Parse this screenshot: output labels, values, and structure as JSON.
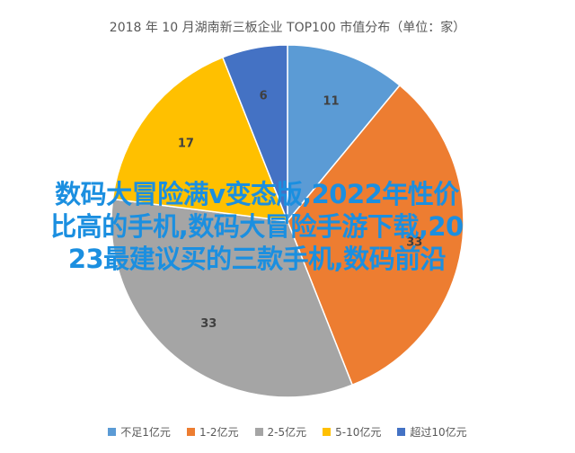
{
  "chart_data": {
    "type": "pie",
    "title": "2018 年 10 月湖南新三板企业 TOP100 市值分布（单位：家）",
    "slices": [
      {
        "label": "不足1亿元",
        "value": 11,
        "color": "#5b9bd5"
      },
      {
        "label": "1-2亿元",
        "value": 33,
        "color": "#ed7d31"
      },
      {
        "label": "2-5亿元",
        "value": 33,
        "color": "#a5a5a5"
      },
      {
        "label": "5-10亿元",
        "value": 17,
        "color": "#ffc000"
      },
      {
        "label": "超过10亿元",
        "value": 6,
        "color": "#4472c4"
      }
    ],
    "legend_position": "bottom"
  },
  "overlay_text": {
    "line1": "数码大冒险满v变态版,2022年性价",
    "line2": "比高的手机,数码大冒险手游下载,20",
    "line3": "23最建议买的三款手机,数码前沿"
  }
}
